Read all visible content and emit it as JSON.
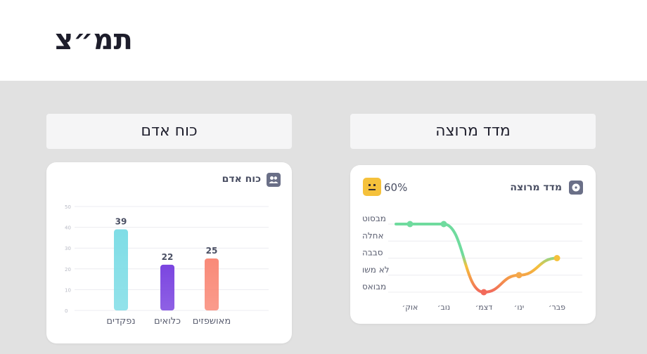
{
  "page": {
    "title": "תמ״צ"
  },
  "sections": {
    "manpower_tab": "כוח אדם",
    "morale_tab": "מדד מרוצה"
  },
  "manpower_card": {
    "title": "כוח אדם",
    "icon": "people-icon",
    "chart_data": {
      "type": "bar",
      "categories": [
        "נפקדים",
        "כלואים",
        "מאושפזים"
      ],
      "values": [
        39,
        22,
        25
      ],
      "colors": [
        "#7fdde6",
        "#7b45e0",
        "#f98a78"
      ],
      "ylim": [
        0,
        50
      ],
      "yticks": [
        0,
        10,
        20,
        30,
        40,
        50
      ],
      "grid": true
    }
  },
  "morale_card": {
    "title": "מדד מרוצה",
    "icon": "chat-icon",
    "score_text": "60%",
    "score_icon": "neutral-face-icon",
    "chart_data": {
      "type": "line",
      "x": [
        "אוק׳",
        "נוב׳",
        "דצמ׳",
        "ינו׳",
        "פבר׳"
      ],
      "y_levels": [
        "מבסוט",
        "אחלה",
        "סבבה",
        "לא משו",
        "מבואס"
      ],
      "values": [
        4,
        4,
        0,
        1,
        2
      ],
      "ylim": [
        0,
        4
      ],
      "colors": {
        "high": "#6fdb9e",
        "mid": "#f5c13b",
        "low": "#f26a5b"
      },
      "grid": true
    }
  }
}
